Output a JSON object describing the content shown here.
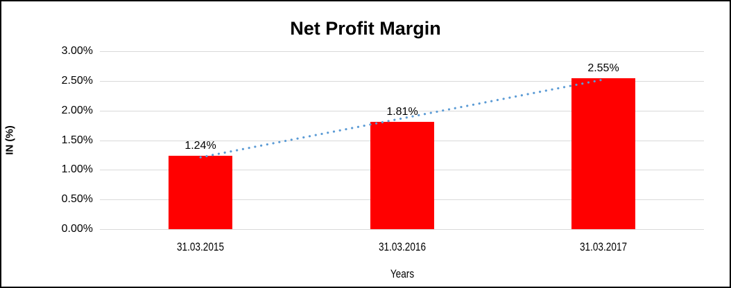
{
  "chart_data": {
    "type": "bar",
    "title": "Net Profit Margin",
    "categories": [
      "31.03.2015",
      "31.03.2016",
      "31.03.2017"
    ],
    "values": [
      1.24,
      1.81,
      2.55
    ],
    "data_labels": [
      "1.24%",
      "1.81%",
      "2.55%"
    ],
    "xlabel": "Years",
    "ylabel": "IN (%)",
    "ylim": [
      0,
      3
    ],
    "ytick_step": 0.5,
    "ytick_labels": [
      "3.00%",
      "2.50%",
      "2.00%",
      "1.50%",
      "1.00%",
      "0.50%",
      "0.00%"
    ],
    "grid": true,
    "legend": "none",
    "colors": {
      "bar": "#ff0000",
      "trendline": "#5b9bd5",
      "gridline": "#d9d9d9",
      "text": "#000000",
      "frame_border": "#000000",
      "background": "#ffffff"
    },
    "trendline": {
      "type": "linear",
      "style": "dotted"
    }
  }
}
